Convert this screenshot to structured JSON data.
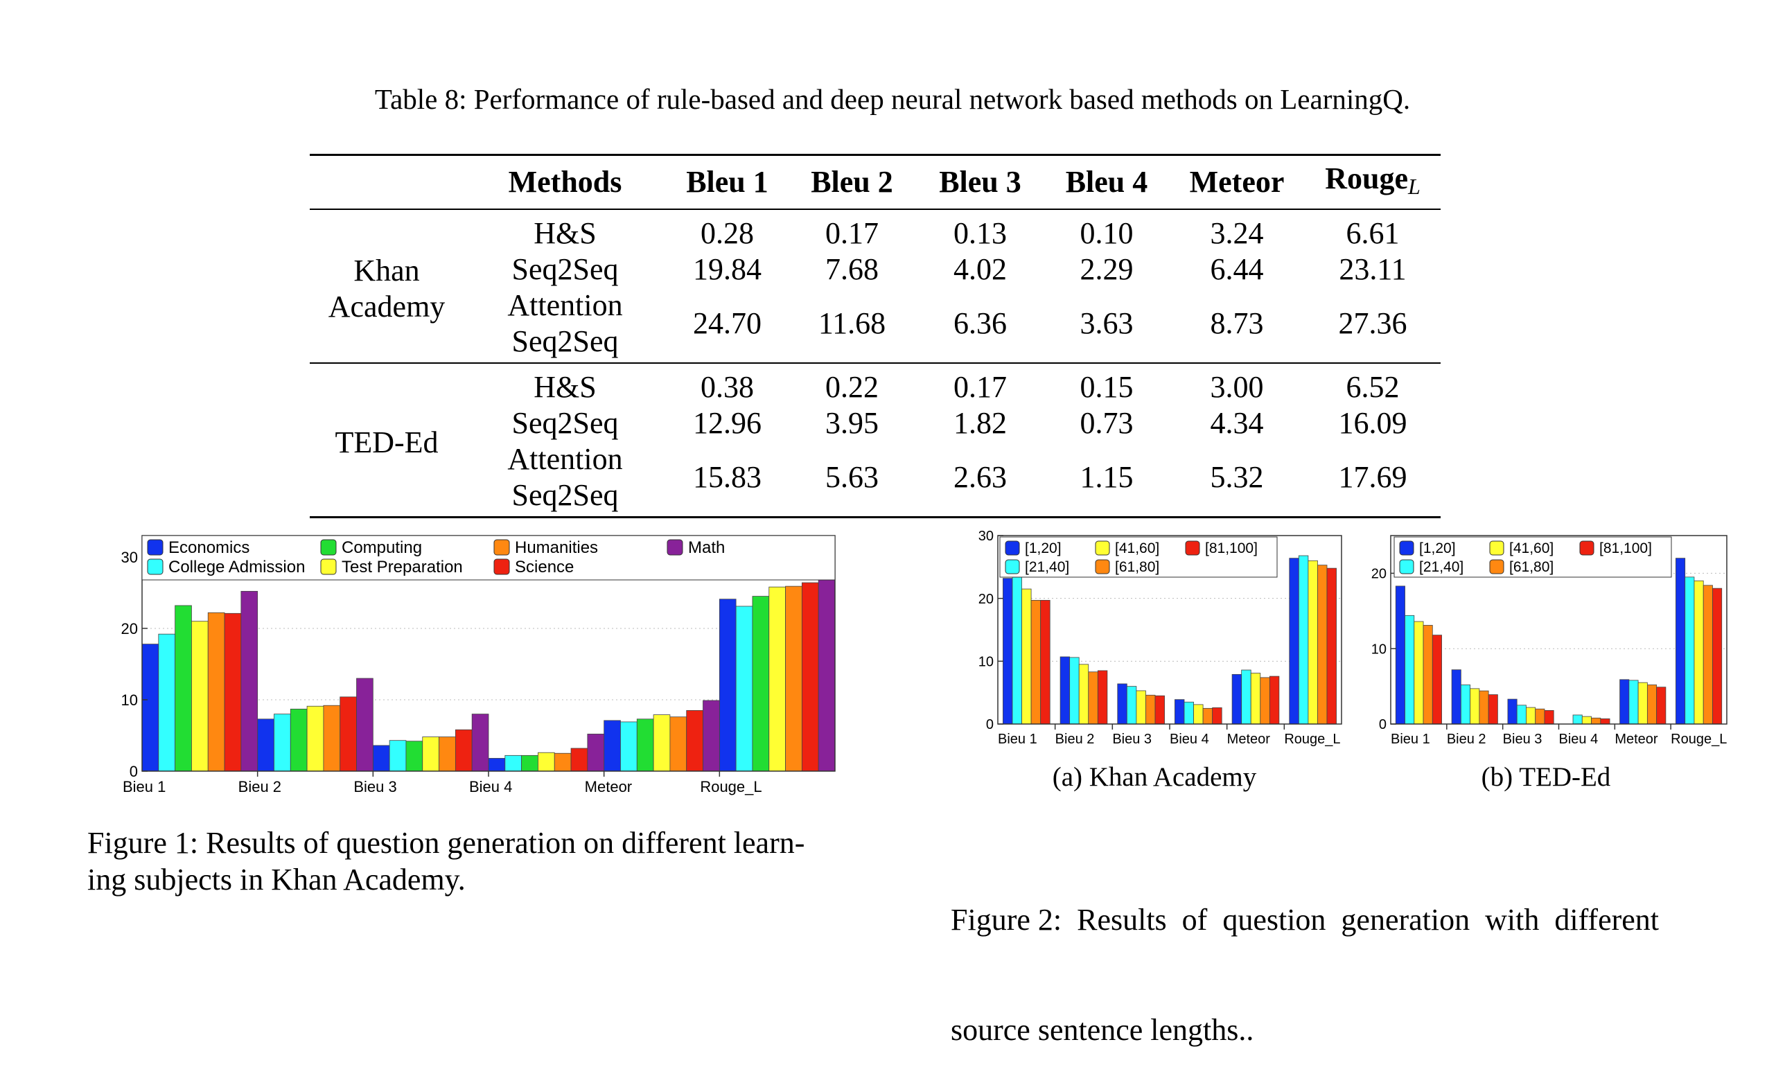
{
  "table": {
    "caption": "Table 8: Performance of rule-based and deep neural network based methods on LearningQ.",
    "headers": [
      "",
      "Methods",
      "Bleu 1",
      "Bleu 2",
      "Bleu 3",
      "Bleu 4",
      "Meteor",
      "Rouge"
    ],
    "rouge_subscript": "L",
    "groups": [
      {
        "dataset_lines": [
          "Khan",
          "Academy"
        ],
        "rows": [
          {
            "method": "H&S",
            "values": [
              "0.28",
              "0.17",
              "0.13",
              "0.10",
              "3.24",
              "6.61"
            ]
          },
          {
            "method": "Seq2Seq",
            "values": [
              "19.84",
              "7.68",
              "4.02",
              "2.29",
              "6.44",
              "23.11"
            ]
          },
          {
            "method": "Attention Seq2Seq",
            "values": [
              "24.70",
              "11.68",
              "6.36",
              "3.63",
              "8.73",
              "27.36"
            ]
          }
        ]
      },
      {
        "dataset_lines": [
          "TED-Ed"
        ],
        "rows": [
          {
            "method": "H&S",
            "values": [
              "0.38",
              "0.22",
              "0.17",
              "0.15",
              "3.00",
              "6.52"
            ]
          },
          {
            "method": "Seq2Seq",
            "values": [
              "12.96",
              "3.95",
              "1.82",
              "0.73",
              "4.34",
              "16.09"
            ]
          },
          {
            "method": "Attention Seq2Seq",
            "values": [
              "15.83",
              "5.63",
              "2.63",
              "1.15",
              "5.32",
              "17.69"
            ]
          }
        ]
      }
    ]
  },
  "figure1": {
    "caption_lines": [
      "Figure 1: Results of question generation on different learn-",
      "ing subjects in Khan Academy."
    ]
  },
  "figure2": {
    "caption_lines": [
      "Figure 2:  Results  of  question  generation  with  different",
      "source sentence lengths.."
    ],
    "subcaption_a": "(a) Khan Academy",
    "subcaption_b": "(b) TED-Ed"
  },
  "chart_data": [
    {
      "type": "bar",
      "categories": [
        "Bieu 1",
        "Bieu 2",
        "Bieu 3",
        "Bieu 4",
        "Meteor",
        "Rouge_L"
      ],
      "ylim": [
        0,
        33
      ],
      "yticks": [
        0,
        10,
        20,
        30
      ],
      "grid": true,
      "legend_position": "top",
      "legend_columns": 4,
      "series": [
        {
          "name": "Economics",
          "color": "#1133ee",
          "values": [
            17.8,
            7.3,
            3.6,
            1.8,
            7.1,
            24.1
          ]
        },
        {
          "name": "College Admission",
          "color": "#33ffff",
          "values": [
            19.2,
            8.0,
            4.3,
            2.2,
            6.9,
            23.1
          ]
        },
        {
          "name": "Computing",
          "color": "#22dd33",
          "values": [
            23.2,
            8.7,
            4.2,
            2.2,
            7.3,
            24.5
          ]
        },
        {
          "name": "Test Preparation",
          "color": "#ffff33",
          "values": [
            21.0,
            9.1,
            4.8,
            2.6,
            7.9,
            25.8
          ]
        },
        {
          "name": "Humanities",
          "color": "#ff8811",
          "values": [
            22.2,
            9.2,
            4.8,
            2.5,
            7.6,
            25.9
          ]
        },
        {
          "name": "Science",
          "color": "#ee2211",
          "values": [
            22.1,
            10.4,
            5.8,
            3.2,
            8.5,
            26.4
          ]
        },
        {
          "name": "Math",
          "color": "#882299",
          "values": [
            25.2,
            13.0,
            8.0,
            5.2,
            9.9,
            29.0
          ]
        }
      ]
    },
    {
      "type": "bar",
      "categories": [
        "Bieu 1",
        "Bieu 2",
        "Bieu 3",
        "Bieu 4",
        "Meteor",
        "Rouge_L"
      ],
      "ylim": [
        0,
        30
      ],
      "yticks": [
        0,
        10,
        20,
        30
      ],
      "grid": true,
      "legend_position": "top",
      "legend_columns": 3,
      "series": [
        {
          "name": "[1,20]",
          "color": "#1133ee",
          "values": [
            23.2,
            10.7,
            6.4,
            3.9,
            7.9,
            26.4
          ]
        },
        {
          "name": "[21,40]",
          "color": "#33ffff",
          "values": [
            23.8,
            10.6,
            6.0,
            3.5,
            8.6,
            26.8
          ]
        },
        {
          "name": "[41,60]",
          "color": "#ffff33",
          "values": [
            21.5,
            9.5,
            5.3,
            3.1,
            8.1,
            26.0
          ]
        },
        {
          "name": "[61,80]",
          "color": "#ff8811",
          "values": [
            19.7,
            8.3,
            4.6,
            2.5,
            7.4,
            25.3
          ]
        },
        {
          "name": "[81,100]",
          "color": "#ee2211",
          "values": [
            19.7,
            8.5,
            4.5,
            2.6,
            7.6,
            24.8
          ]
        }
      ]
    },
    {
      "type": "bar",
      "categories": [
        "Bieu 1",
        "Bieu 2",
        "Bieu 3",
        "Bieu 4",
        "Meteor",
        "Rouge_L"
      ],
      "ylim": [
        0,
        25
      ],
      "yticks": [
        0,
        10,
        20
      ],
      "grid": true,
      "legend_position": "top",
      "legend_columns": 3,
      "series": [
        {
          "name": "[1,20]",
          "color": "#1133ee",
          "values": [
            18.3,
            7.2,
            3.3,
            0,
            5.9,
            22.0
          ]
        },
        {
          "name": "[21,40]",
          "color": "#33ffff",
          "values": [
            14.4,
            5.2,
            2.5,
            1.2,
            5.8,
            19.5
          ]
        },
        {
          "name": "[41,60]",
          "color": "#ffff33",
          "values": [
            13.6,
            4.7,
            2.2,
            1.0,
            5.5,
            19.0
          ]
        },
        {
          "name": "[61,80]",
          "color": "#ff8811",
          "values": [
            13.1,
            4.4,
            2.0,
            0.8,
            5.2,
            18.4
          ]
        },
        {
          "name": "[81,100]",
          "color": "#ee2211",
          "values": [
            11.8,
            3.9,
            1.8,
            0.7,
            4.9,
            18.0
          ]
        }
      ]
    }
  ]
}
